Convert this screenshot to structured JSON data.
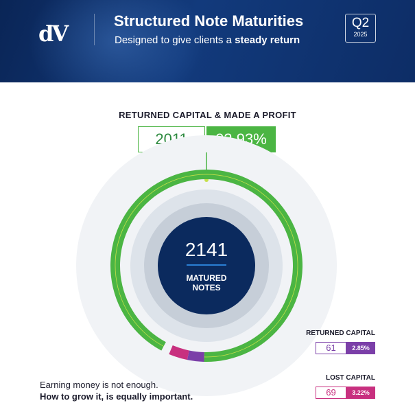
{
  "header": {
    "logo_text": "dV",
    "title": "Structured Note Maturities",
    "subtitle_prefix": "Designed to give clients a ",
    "subtitle_emphasis": "steady return",
    "quarter": "Q2",
    "year": "2025"
  },
  "chart_data": {
    "type": "donut",
    "total": {
      "value": "2141",
      "label_line1": "MATURED",
      "label_line2": "NOTES"
    },
    "segments": [
      {
        "name": "RETURNED CAPITAL & MADE A PROFIT",
        "count": "2011",
        "percent": "93.93%",
        "value": 93.93,
        "color": "#4bb543"
      },
      {
        "name": "RETURNED CAPITAL",
        "count": "61",
        "percent": "2.85%",
        "value": 2.85,
        "color": "#7b3fa8"
      },
      {
        "name": "LOST CAPITAL",
        "count": "69",
        "percent": "3.22%",
        "value": 3.22,
        "color": "#c8307f"
      }
    ]
  },
  "footer": {
    "line1": "Earning money is not enough.",
    "line2": "How to grow it, is equally important."
  }
}
